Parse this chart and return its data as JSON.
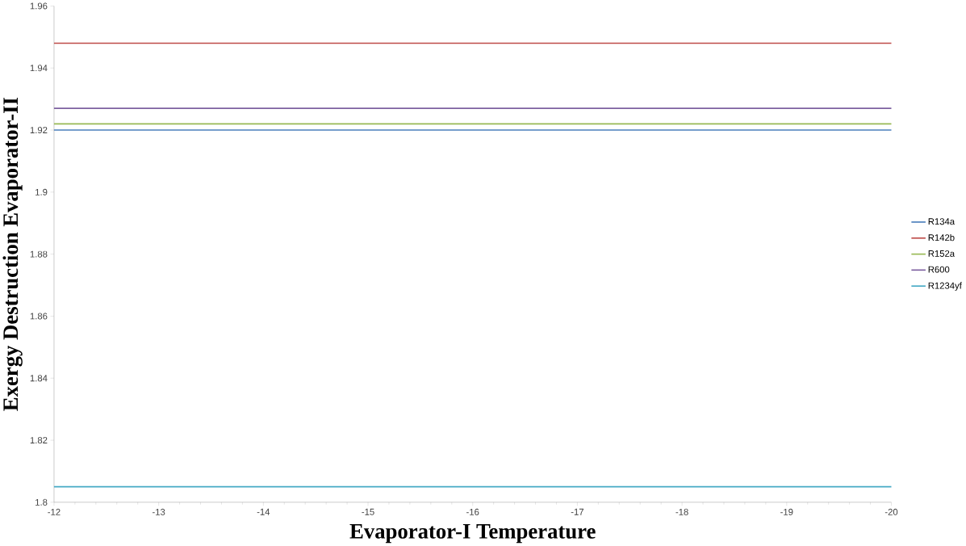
{
  "chart_data": {
    "type": "line",
    "xlabel": "Evaporator-I Temperature",
    "ylabel": "Exergy Destruction Evaporator-II",
    "x": [
      -12,
      -20
    ],
    "xlim": [
      -12,
      -20
    ],
    "xticks": [
      -12,
      -13,
      -14,
      -15,
      -16,
      -17,
      -18,
      -19,
      -20
    ],
    "ylim": [
      1.8,
      1.96
    ],
    "yticks": [
      1.8,
      1.82,
      1.84,
      1.86,
      1.88,
      1.9,
      1.92,
      1.94,
      1.96
    ],
    "legend": "right",
    "marker": "none",
    "line_style": "solid",
    "grid": false,
    "series": [
      {
        "name": "R134a",
        "color": "#4a7ebb",
        "values": [
          1.92,
          1.92
        ]
      },
      {
        "name": "R142b",
        "color": "#be4b48",
        "values": [
          1.948,
          1.948
        ]
      },
      {
        "name": "R152a",
        "color": "#98b954",
        "values": [
          1.922,
          1.922
        ]
      },
      {
        "name": "R600",
        "color": "#7d60a0",
        "values": [
          1.927,
          1.927
        ]
      },
      {
        "name": "R1234yf",
        "color": "#46aac5",
        "values": [
          1.805,
          1.805
        ]
      }
    ]
  }
}
